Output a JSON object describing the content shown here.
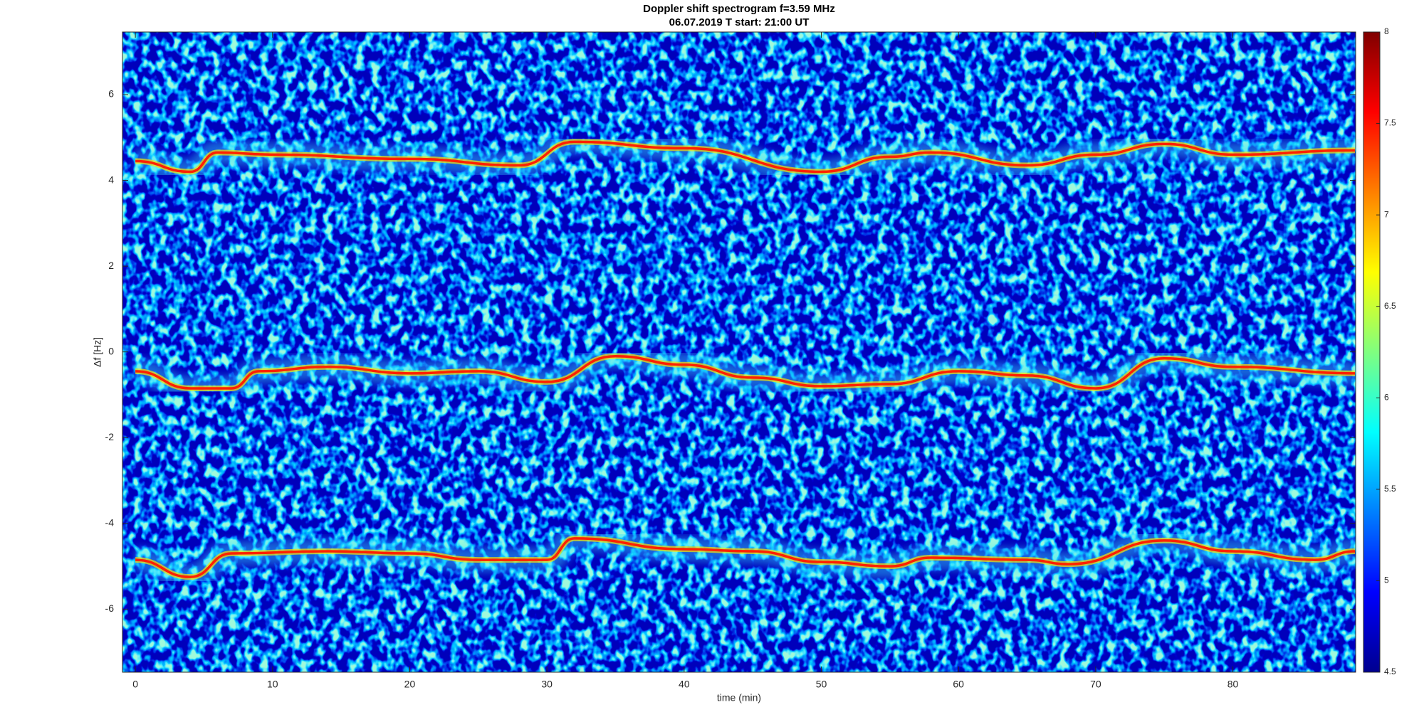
{
  "chart_data": {
    "type": "spectrogram",
    "title": "Doppler shift spectrogram f=3.59 MHz",
    "subtitle": "06.07.2019    T start: 21:00 UT",
    "x_label": "time (min)",
    "y_label": "Δf [Hz]",
    "xlim": [
      -0.94,
      88.95
    ],
    "xticks": [
      0,
      10,
      20,
      30,
      40,
      50,
      60,
      70,
      80
    ],
    "ylim": [
      -7.47,
      7.46
    ],
    "yticks": [
      -6,
      -4,
      -2,
      0,
      2,
      4,
      6
    ],
    "colormap": "jet",
    "clim": [
      4.5,
      8
    ],
    "cticks": [
      4.5,
      5,
      5.5,
      6,
      6.5,
      7,
      7.5,
      8
    ],
    "series": [
      {
        "color": "#ff2000",
        "x": [
          0,
          4,
          6,
          10,
          20,
          28,
          32,
          40,
          50,
          55,
          58,
          65,
          70,
          75,
          80,
          88.9
        ],
        "values": [
          4.45,
          4.2,
          4.65,
          4.6,
          4.5,
          4.35,
          4.9,
          4.75,
          4.2,
          4.55,
          4.65,
          4.35,
          4.6,
          4.85,
          4.6,
          4.7
        ]
      },
      {
        "color": "#ff2000",
        "x": [
          0,
          4,
          7,
          9,
          14,
          20,
          25,
          30,
          35,
          40,
          45,
          50,
          55,
          60,
          65,
          70,
          75,
          80,
          88.9
        ],
        "values": [
          -0.45,
          -0.85,
          -0.85,
          -0.45,
          -0.35,
          -0.5,
          -0.45,
          -0.7,
          -0.1,
          -0.3,
          -0.6,
          -0.8,
          -0.75,
          -0.45,
          -0.55,
          -0.85,
          -0.15,
          -0.35,
          -0.5
        ]
      },
      {
        "color": "#ff2000",
        "x": [
          0,
          4,
          7,
          14,
          20,
          25,
          30,
          32,
          40,
          45,
          50,
          55,
          58,
          65,
          68,
          75,
          80,
          86,
          88.9
        ],
        "values": [
          -4.85,
          -5.25,
          -4.7,
          -4.65,
          -4.7,
          -4.85,
          -4.85,
          -4.35,
          -4.6,
          -4.65,
          -4.9,
          -5.0,
          -4.8,
          -4.85,
          -4.95,
          -4.4,
          -4.65,
          -4.85,
          -4.65
        ]
      }
    ]
  }
}
